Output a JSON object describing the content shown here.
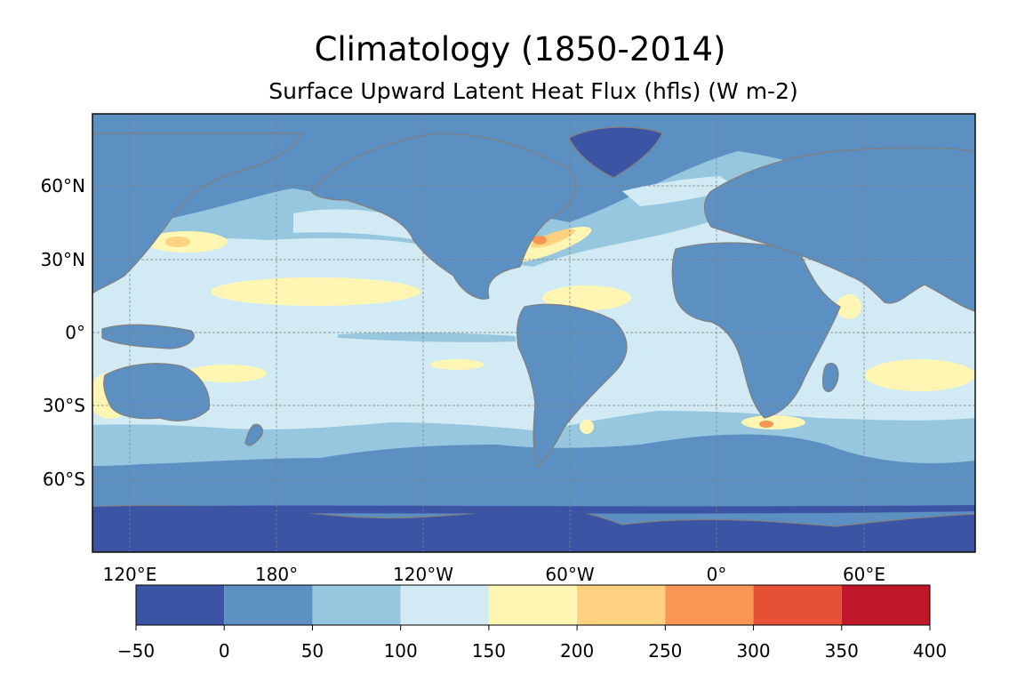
{
  "title": "Climatology (1850-2014)",
  "subtitle": "Surface Upward Latent Heat Flux (hfls) (W m-2)",
  "map": {
    "projection": "PlateCarree, central longitude 210",
    "variable": "hfls",
    "units": "W m-2",
    "gridlines": true,
    "lon_ticks": [
      "120°E",
      "180°",
      "120°W",
      "60°W",
      "0°",
      "60°E"
    ],
    "lat_ticks": [
      "60°N",
      "30°N",
      "0°",
      "30°S",
      "60°S"
    ]
  },
  "colorbar": {
    "boundaries": [
      -50,
      0,
      50,
      100,
      150,
      200,
      250,
      300,
      350,
      400
    ],
    "tick_labels": [
      "−50",
      "0",
      "50",
      "100",
      "150",
      "200",
      "250",
      "300",
      "350",
      "400"
    ],
    "colors": [
      "#3b54a4",
      "#5c90c3",
      "#97c6df",
      "#d1eaf3",
      "#fff6b3",
      "#fdd180",
      "#f89655",
      "#e65035",
      "#c0172b"
    ]
  },
  "colors": {
    "coastline": "#808080",
    "gridline": "#808080"
  }
}
